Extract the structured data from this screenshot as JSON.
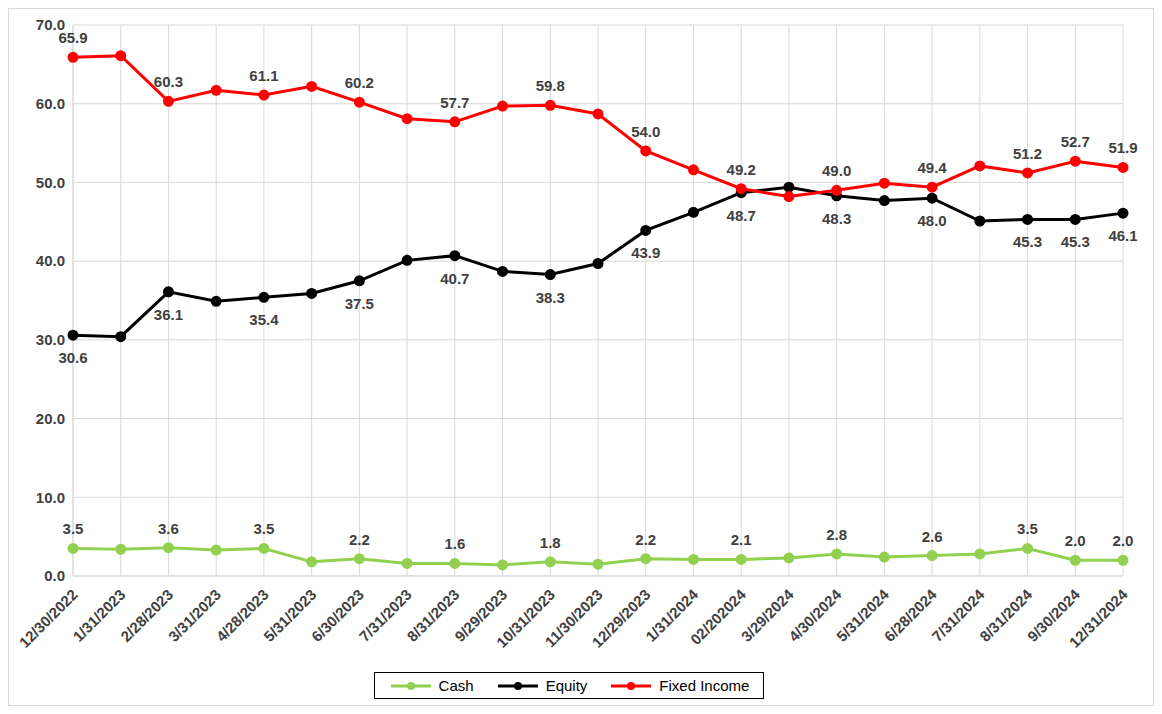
{
  "chart_data": {
    "type": "line",
    "categories": [
      "12/30/2022",
      "1/31/2023",
      "2/28/2023",
      "3/31/2023",
      "4/28/2023",
      "5/31/2023",
      "6/30/2023",
      "7/31/2023",
      "8/31/2023",
      "9/29/2023",
      "10/31/2023",
      "11/30/2023",
      "12/29/2023",
      "1/31/2024",
      "02/202024",
      "3/29/2024",
      "4/30/2024",
      "5/31/2024",
      "6/28/2024",
      "7/31/2024",
      "8/31/2024",
      "9/30/2024",
      "12/31/2024"
    ],
    "series": [
      {
        "name": "Cash",
        "color": "#92D050",
        "marker": "circle",
        "values": [
          3.5,
          3.4,
          3.6,
          3.3,
          3.5,
          1.8,
          2.2,
          1.6,
          1.6,
          1.4,
          1.8,
          1.5,
          2.2,
          2.1,
          2.1,
          2.3,
          2.8,
          2.4,
          2.6,
          2.8,
          3.5,
          2.0,
          2.0
        ],
        "value_labels": [
          "3.5",
          null,
          "3.6",
          null,
          "3.5",
          null,
          "2.2",
          null,
          "1.6",
          null,
          "1.8",
          null,
          "2.2",
          null,
          "2.1",
          null,
          "2.8",
          null,
          "2.6",
          null,
          "3.5",
          "2.0",
          "2.0"
        ]
      },
      {
        "name": "Equity",
        "color": "#000000",
        "marker": "circle",
        "values": [
          30.6,
          30.4,
          36.1,
          34.9,
          35.4,
          35.9,
          37.5,
          40.1,
          40.7,
          38.7,
          38.3,
          39.7,
          43.9,
          46.2,
          48.7,
          49.4,
          48.3,
          47.7,
          48.0,
          45.1,
          45.3,
          45.3,
          46.1
        ],
        "value_labels": [
          "30.6",
          null,
          "36.1",
          null,
          "35.4",
          null,
          "37.5",
          null,
          "40.7",
          null,
          "38.3",
          null,
          "43.9",
          null,
          "48.7",
          null,
          "48.3",
          null,
          "48.0",
          null,
          "45.3",
          "45.3",
          "46.1"
        ]
      },
      {
        "name": "Fixed Income",
        "color": "#FF0000",
        "marker": "circle",
        "values": [
          65.9,
          66.1,
          60.3,
          61.7,
          61.1,
          62.2,
          60.2,
          58.1,
          57.7,
          59.7,
          59.8,
          58.7,
          54.0,
          51.6,
          49.2,
          48.2,
          49.0,
          49.9,
          49.4,
          52.1,
          51.2,
          52.7,
          51.9
        ],
        "value_labels": [
          "65.9",
          null,
          "60.3",
          null,
          "61.1",
          null,
          "60.2",
          null,
          "57.7",
          null,
          "59.8",
          null,
          "54.0",
          null,
          "49.2",
          null,
          "49.0",
          null,
          "49.4",
          null,
          "51.2",
          "52.7",
          "51.9"
        ]
      }
    ],
    "ylim": [
      0,
      70
    ],
    "yticks": [
      {
        "value": 0,
        "label": "0.0"
      },
      {
        "value": 10,
        "label": "10.0"
      },
      {
        "value": 20,
        "label": "20.0"
      },
      {
        "value": 30,
        "label": "30.0"
      },
      {
        "value": 40,
        "label": "40.0"
      },
      {
        "value": 50,
        "label": "50.0"
      },
      {
        "value": 60,
        "label": "60.0"
      },
      {
        "value": 70,
        "label": "70.0"
      }
    ],
    "grid": true,
    "legend": "bottom",
    "data_labels": true
  }
}
